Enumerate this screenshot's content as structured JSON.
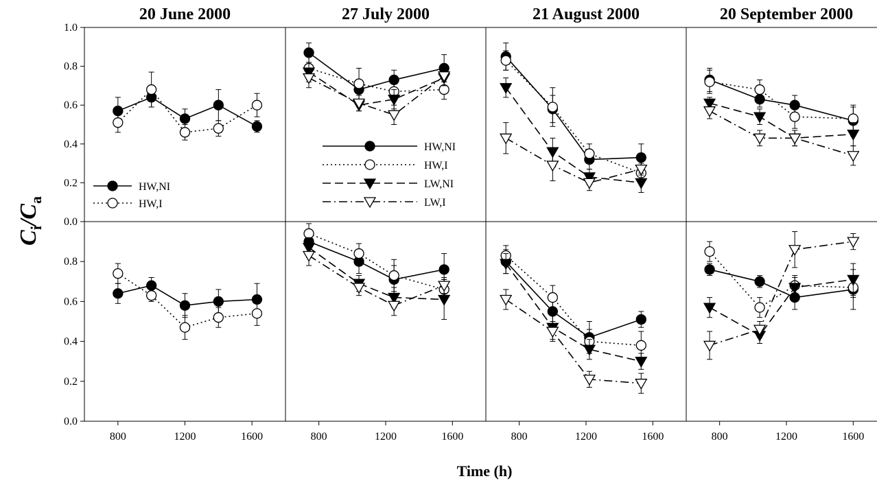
{
  "figure": {
    "xlabel": "Time (h)",
    "ylabel_main": "C",
    "ylabel_sub1": "i",
    "ylabel_slash": "/",
    "ylabel_sub2": "a"
  },
  "styles": {
    "HW,NI": {
      "dash": "none",
      "marker": "circle",
      "fill": "#000000"
    },
    "HW,I": {
      "dash": "dotted",
      "marker": "circle",
      "fill": "#ffffff"
    },
    "LW,NI": {
      "dash": "dashed",
      "marker": "triangle-down",
      "fill": "#000000"
    },
    "LW,I": {
      "dash": "dashdot",
      "marker": "triangle-down",
      "fill": "#ffffff"
    }
  },
  "chart_data": [
    {
      "type": "line",
      "column": 0,
      "row": 0,
      "title": "20 June 2000",
      "xlim": [
        600,
        1800
      ],
      "ylim": [
        0,
        1.0
      ],
      "xticks": [
        800,
        1200,
        1600
      ],
      "yticks": [
        0.0,
        0.2,
        0.4,
        0.6,
        0.8,
        1.0
      ],
      "legend": {
        "entries": [
          "HW,NI",
          "HW,I"
        ],
        "placement": "lower-left"
      },
      "series": [
        {
          "name": "HW,NI",
          "x": [
            800,
            1000,
            1200,
            1400,
            1630
          ],
          "y": [
            0.57,
            0.64,
            0.53,
            0.6,
            0.49
          ],
          "err": [
            0.07,
            0.05,
            0.05,
            0.08,
            0.03
          ]
        },
        {
          "name": "HW,I",
          "x": [
            800,
            1000,
            1200,
            1400,
            1630
          ],
          "y": [
            0.51,
            0.68,
            0.46,
            0.48,
            0.6
          ],
          "err": [
            0.05,
            0.09,
            0.04,
            0.04,
            0.06
          ]
        }
      ]
    },
    {
      "type": "line",
      "column": 1,
      "row": 0,
      "title": "27 July 2000",
      "xlim": [
        600,
        1800
      ],
      "ylim": [
        0,
        1.0
      ],
      "xticks": [
        800,
        1200,
        1600
      ],
      "yticks": [
        0.0,
        0.2,
        0.4,
        0.6,
        0.8,
        1.0
      ],
      "legend": {
        "entries": [
          "HW,NI",
          "HW,I",
          "LW,NI",
          "LW,I"
        ],
        "placement": "center"
      },
      "series": [
        {
          "name": "HW,NI",
          "x": [
            740,
            1040,
            1250,
            1550
          ],
          "y": [
            0.87,
            0.68,
            0.73,
            0.79
          ],
          "err": [
            0.05,
            0.05,
            0.05,
            0.07
          ]
        },
        {
          "name": "HW,I",
          "x": [
            740,
            1040,
            1250,
            1550
          ],
          "y": [
            0.79,
            0.71,
            0.67,
            0.68
          ],
          "err": [
            0.06,
            0.08,
            0.05,
            0.05
          ]
        },
        {
          "name": "LW,NI",
          "x": [
            740,
            1040,
            1250,
            1550
          ],
          "y": [
            0.77,
            0.6,
            0.63,
            0.74
          ],
          "err": [
            0.05,
            0.03,
            0.05,
            0.04
          ]
        },
        {
          "name": "LW,I",
          "x": [
            740,
            1040,
            1250,
            1550
          ],
          "y": [
            0.74,
            0.61,
            0.55,
            0.75
          ],
          "err": [
            0.05,
            0.04,
            0.05,
            0.03
          ]
        }
      ]
    },
    {
      "type": "line",
      "column": 2,
      "row": 0,
      "title": "21 August 2000",
      "xlim": [
        600,
        1800
      ],
      "ylim": [
        0,
        1.0
      ],
      "xticks": [
        800,
        1200,
        1600
      ],
      "yticks": [
        0.0,
        0.2,
        0.4,
        0.6,
        0.8,
        1.0
      ],
      "series": [
        {
          "name": "HW,NI",
          "x": [
            720,
            1000,
            1220,
            1530
          ],
          "y": [
            0.85,
            0.58,
            0.32,
            0.33
          ],
          "err": [
            0.07,
            0.07,
            0.05,
            0.07
          ]
        },
        {
          "name": "HW,I",
          "x": [
            720,
            1000,
            1220,
            1530
          ],
          "y": [
            0.83,
            0.59,
            0.35,
            0.25
          ],
          "err": [
            0.05,
            0.1,
            0.05,
            0.03
          ]
        },
        {
          "name": "LW,NI",
          "x": [
            720,
            1000,
            1220,
            1530
          ],
          "y": [
            0.69,
            0.36,
            0.23,
            0.2
          ],
          "err": [
            0.05,
            0.07,
            0.04,
            0.05
          ]
        },
        {
          "name": "LW,I",
          "x": [
            720,
            1000,
            1220,
            1530
          ],
          "y": [
            0.43,
            0.29,
            0.2,
            0.27
          ],
          "err": [
            0.08,
            0.08,
            0.04,
            0.03
          ]
        }
      ]
    },
    {
      "type": "line",
      "column": 3,
      "row": 0,
      "title": "20 September 2000",
      "xlim": [
        600,
        1800
      ],
      "ylim": [
        0,
        1.0
      ],
      "xticks": [
        800,
        1200,
        1600
      ],
      "yticks": [
        0.0,
        0.2,
        0.4,
        0.6,
        0.8,
        1.0
      ],
      "series": [
        {
          "name": "HW,NI",
          "x": [
            740,
            1040,
            1250,
            1600
          ],
          "y": [
            0.73,
            0.63,
            0.6,
            0.52
          ],
          "err": [
            0.06,
            0.04,
            0.05,
            0.08
          ]
        },
        {
          "name": "HW,I",
          "x": [
            740,
            1040,
            1250,
            1600
          ],
          "y": [
            0.72,
            0.68,
            0.54,
            0.53
          ],
          "err": [
            0.06,
            0.05,
            0.06,
            0.06
          ]
        },
        {
          "name": "LW,NI",
          "x": [
            740,
            1040,
            1250,
            1600
          ],
          "y": [
            0.61,
            0.54,
            0.43,
            0.45
          ],
          "err": [
            0.03,
            0.04,
            0.04,
            0.06
          ]
        },
        {
          "name": "LW,I",
          "x": [
            740,
            1040,
            1250,
            1600
          ],
          "y": [
            0.57,
            0.43,
            0.43,
            0.34
          ],
          "err": [
            0.04,
            0.04,
            0.04,
            0.05
          ]
        }
      ]
    },
    {
      "type": "line",
      "column": 0,
      "row": 1,
      "title": "",
      "xlim": [
        600,
        1800
      ],
      "ylim": [
        0,
        1.0
      ],
      "xticks": [
        800,
        1200,
        1600
      ],
      "yticks": [
        0.0,
        0.2,
        0.4,
        0.6,
        0.8
      ],
      "series": [
        {
          "name": "HW,NI",
          "x": [
            800,
            1000,
            1200,
            1400,
            1630
          ],
          "y": [
            0.64,
            0.68,
            0.58,
            0.6,
            0.61
          ],
          "err": [
            0.05,
            0.04,
            0.06,
            0.06,
            0.08
          ]
        },
        {
          "name": "HW,I",
          "x": [
            800,
            1000,
            1200,
            1400,
            1630
          ],
          "y": [
            0.74,
            0.63,
            0.47,
            0.52,
            0.54
          ],
          "err": [
            0.05,
            0.03,
            0.06,
            0.05,
            0.06
          ]
        }
      ]
    },
    {
      "type": "line",
      "column": 1,
      "row": 1,
      "title": "",
      "xlim": [
        600,
        1800
      ],
      "ylim": [
        0,
        1.0
      ],
      "xticks": [
        800,
        1200,
        1600
      ],
      "yticks": [
        0.0,
        0.2,
        0.4,
        0.6,
        0.8
      ],
      "series": [
        {
          "name": "HW,NI",
          "x": [
            740,
            1040,
            1250,
            1550
          ],
          "y": [
            0.9,
            0.8,
            0.71,
            0.76
          ],
          "err": [
            0.05,
            0.06,
            0.07,
            0.08
          ]
        },
        {
          "name": "HW,I",
          "x": [
            740,
            1040,
            1250,
            1550
          ],
          "y": [
            0.94,
            0.84,
            0.73,
            0.66
          ],
          "err": [
            0.05,
            0.05,
            0.08,
            0.05
          ]
        },
        {
          "name": "LW,NI",
          "x": [
            740,
            1040,
            1250,
            1550
          ],
          "y": [
            0.87,
            0.69,
            0.62,
            0.61
          ],
          "err": [
            0.05,
            0.04,
            0.05,
            0.1
          ]
        },
        {
          "name": "LW,I",
          "x": [
            740,
            1040,
            1250,
            1550
          ],
          "y": [
            0.83,
            0.67,
            0.58,
            0.68
          ],
          "err": [
            0.05,
            0.04,
            0.05,
            0.04
          ]
        }
      ]
    },
    {
      "type": "line",
      "column": 2,
      "row": 1,
      "title": "",
      "xlim": [
        600,
        1800
      ],
      "ylim": [
        0,
        1.0
      ],
      "xticks": [
        800,
        1200,
        1600
      ],
      "yticks": [
        0.0,
        0.2,
        0.4,
        0.6,
        0.8
      ],
      "series": [
        {
          "name": "HW,NI",
          "x": [
            720,
            1000,
            1220,
            1530
          ],
          "y": [
            0.8,
            0.55,
            0.42,
            0.51
          ],
          "err": [
            0.06,
            0.06,
            0.08,
            0.04
          ]
        },
        {
          "name": "HW,I",
          "x": [
            720,
            1000,
            1220,
            1530
          ],
          "y": [
            0.83,
            0.62,
            0.4,
            0.38
          ],
          "err": [
            0.05,
            0.06,
            0.06,
            0.07
          ]
        },
        {
          "name": "LW,NI",
          "x": [
            720,
            1000,
            1220,
            1530
          ],
          "y": [
            0.79,
            0.47,
            0.36,
            0.3
          ],
          "err": [
            0.05,
            0.06,
            0.05,
            0.04
          ]
        },
        {
          "name": "LW,I",
          "x": [
            720,
            1000,
            1220,
            1530
          ],
          "y": [
            0.61,
            0.45,
            0.21,
            0.19
          ],
          "err": [
            0.05,
            0.05,
            0.04,
            0.05
          ]
        }
      ]
    },
    {
      "type": "line",
      "column": 3,
      "row": 1,
      "title": "",
      "xlim": [
        600,
        1800
      ],
      "ylim": [
        0,
        1.0
      ],
      "xticks": [
        800,
        1200,
        1600
      ],
      "yticks": [
        0.0,
        0.2,
        0.4,
        0.6,
        0.8
      ],
      "series": [
        {
          "name": "HW,NI",
          "x": [
            740,
            1040,
            1250,
            1600
          ],
          "y": [
            0.76,
            0.7,
            0.62,
            0.66
          ],
          "err": [
            0.03,
            0.03,
            0.06,
            0.1
          ]
        },
        {
          "name": "HW,I",
          "x": [
            740,
            1040,
            1250,
            1600
          ],
          "y": [
            0.85,
            0.57,
            0.68,
            0.67
          ],
          "err": [
            0.05,
            0.05,
            0.05,
            0.05
          ]
        },
        {
          "name": "LW,NI",
          "x": [
            740,
            1040,
            1250,
            1600
          ],
          "y": [
            0.57,
            0.43,
            0.67,
            0.71
          ],
          "err": [
            0.05,
            0.04,
            0.05,
            0.08
          ]
        },
        {
          "name": "LW,I",
          "x": [
            740,
            1040,
            1250,
            1600
          ],
          "y": [
            0.38,
            0.46,
            0.86,
            0.9
          ],
          "err": [
            0.07,
            0.04,
            0.09,
            0.04
          ]
        }
      ]
    }
  ]
}
